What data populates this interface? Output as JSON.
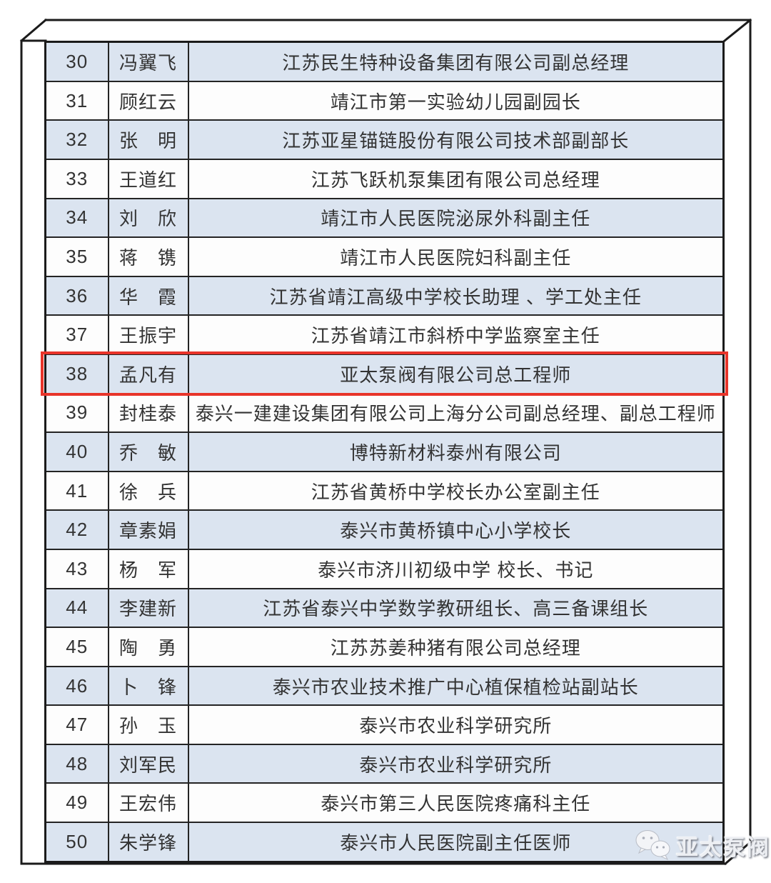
{
  "page": {
    "background": "#ffffff"
  },
  "colors": {
    "row_alt_blue": "#dbe4f0",
    "row_white": "#fdfdfd",
    "grid_line": "#242424",
    "frame_line": "#1b1b1b",
    "highlight_red": "#e8342a",
    "text": "#333333"
  },
  "highlight": {
    "row_no": "38"
  },
  "watermark": {
    "icon": "wechat-icon",
    "label": "亚太泵阀"
  },
  "table": {
    "rows": [
      {
        "no": "30",
        "name": "冯翼飞",
        "position": "江苏民生特种设备集团有限公司副总经理"
      },
      {
        "no": "31",
        "name": "顾红云",
        "position": "靖江市第一实验幼儿园副园长"
      },
      {
        "no": "32",
        "name": "张　明",
        "position": "江苏亚星锚链股份有限公司技术部副部长"
      },
      {
        "no": "33",
        "name": "王道红",
        "position": "江苏飞跃机泵集团有限公司总经理"
      },
      {
        "no": "34",
        "name": "刘　欣",
        "position": "靖江市人民医院泌尿外科副主任"
      },
      {
        "no": "35",
        "name": "蒋　镌",
        "position": "靖江市人民医院妇科副主任"
      },
      {
        "no": "36",
        "name": "华　霞",
        "position": "江苏省靖江高级中学校长助理 、学工处主任"
      },
      {
        "no": "37",
        "name": "王振宇",
        "position": "江苏省靖江市斜桥中学监察室主任"
      },
      {
        "no": "38",
        "name": "孟凡有",
        "position": "亚太泵阀有限公司总工程师"
      },
      {
        "no": "39",
        "name": "封桂泰",
        "position": "泰兴一建建设集团有限公司上海分公司副总经理、副总工程师"
      },
      {
        "no": "40",
        "name": "乔　敏",
        "position": "博特新材料泰州有限公司"
      },
      {
        "no": "41",
        "name": "徐　兵",
        "position": "江苏省黄桥中学校长办公室副主任"
      },
      {
        "no": "42",
        "name": "章素娟",
        "position": "泰兴市黄桥镇中心小学校长"
      },
      {
        "no": "43",
        "name": "杨　军",
        "position": "泰兴市济川初级中学 校长、书记"
      },
      {
        "no": "44",
        "name": "李建新",
        "position": "江苏省泰兴中学数学教研组长、高三备课组长"
      },
      {
        "no": "45",
        "name": "陶　勇",
        "position": "江苏苏姜种猪有限公司总经理"
      },
      {
        "no": "46",
        "name": "卜　锋",
        "position": "泰兴市农业技术推广中心植保植检站副站长"
      },
      {
        "no": "47",
        "name": "孙　玉",
        "position": "泰兴市农业科学研究所"
      },
      {
        "no": "48",
        "name": "刘军民",
        "position": "泰兴市农业科学研究所"
      },
      {
        "no": "49",
        "name": "王宏伟",
        "position": "泰兴市第三人民医院疼痛科主任"
      },
      {
        "no": "50",
        "name": "朱学锋",
        "position": "泰兴市人民医院副主任医师"
      }
    ]
  }
}
